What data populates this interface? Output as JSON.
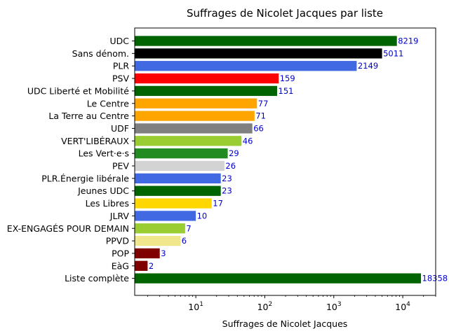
{
  "chart_data": {
    "type": "bar",
    "orientation": "horizontal",
    "title": "Suffrages de Nicolet Jacques par liste",
    "xlabel": "Suffrages de Nicolet Jacques",
    "ylabel": "",
    "xscale": "log",
    "xlim": [
      1.3,
      30000
    ],
    "x_ticks": [
      {
        "value": 10,
        "base": "10",
        "exp": "1"
      },
      {
        "value": 100,
        "base": "10",
        "exp": "2"
      },
      {
        "value": 1000,
        "base": "10",
        "exp": "3"
      },
      {
        "value": 10000,
        "base": "10",
        "exp": "4"
      }
    ],
    "grid": false,
    "value_label_color": "#0000cc",
    "bars": [
      {
        "category": "UDC",
        "value": 8219,
        "label": "8219",
        "color": "#006400"
      },
      {
        "category": "Sans dénom.",
        "value": 5011,
        "label": "5011",
        "color": "#000000"
      },
      {
        "category": "PLR",
        "value": 2149,
        "label": "2149",
        "color": "#4169e1"
      },
      {
        "category": "PSV",
        "value": 159,
        "label": "159",
        "color": "#ff0000"
      },
      {
        "category": "UDC Liberté et Mobilité",
        "value": 151,
        "label": "151",
        "color": "#006400"
      },
      {
        "category": "Le Centre",
        "value": 77,
        "label": "77",
        "color": "#ffa500"
      },
      {
        "category": "La Terre au Centre",
        "value": 71,
        "label": "71",
        "color": "#ffa500"
      },
      {
        "category": "UDF",
        "value": 66,
        "label": "66",
        "color": "#808080"
      },
      {
        "category": "VERT'LIBÉRAUX",
        "value": 46,
        "label": "46",
        "color": "#9acd32"
      },
      {
        "category": "Les Vert·e·s",
        "value": 29,
        "label": "29",
        "color": "#228b22"
      },
      {
        "category": "PEV",
        "value": 26,
        "label": "26",
        "color": "#d3d3d3"
      },
      {
        "category": "PLR.Énergie libérale",
        "value": 23,
        "label": "23",
        "color": "#4169e1"
      },
      {
        "category": "Jeunes UDC",
        "value": 23,
        "label": "23",
        "color": "#006400"
      },
      {
        "category": "Les Libres",
        "value": 17,
        "label": "17",
        "color": "#ffd700"
      },
      {
        "category": "JLRV",
        "value": 10,
        "label": "10",
        "color": "#4169e1"
      },
      {
        "category": "EX-ENGAGÉS POUR DEMAIN",
        "value": 7,
        "label": "7",
        "color": "#9acd32"
      },
      {
        "category": "PPVD",
        "value": 6,
        "label": "6",
        "color": "#f0e68c"
      },
      {
        "category": "POP",
        "value": 3,
        "label": "3",
        "color": "#800000"
      },
      {
        "category": "EàG",
        "value": 2,
        "label": "2",
        "color": "#800000"
      },
      {
        "category": "Liste complète",
        "value": 18358,
        "label": "18358",
        "color": "#006400"
      }
    ]
  }
}
